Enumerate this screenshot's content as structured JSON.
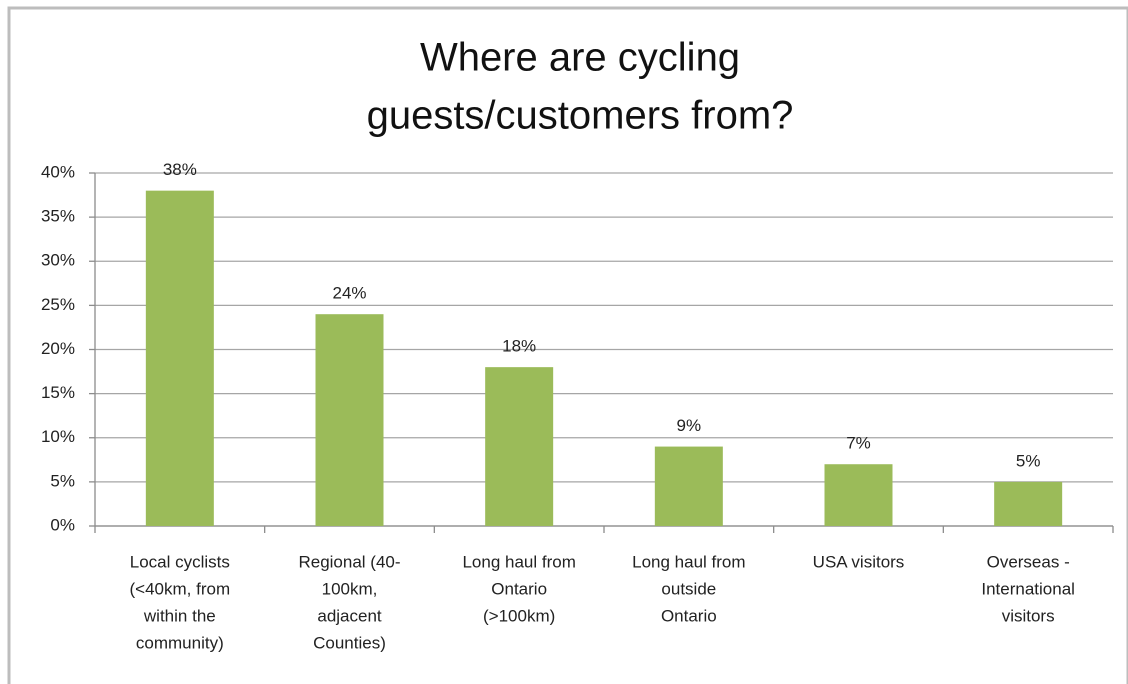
{
  "chart_data": {
    "type": "bar",
    "title": [
      "Where are cycling",
      "guests/customers from?"
    ],
    "categories": [
      [
        "Local cyclists",
        "(<40km, from",
        "within the",
        "community)"
      ],
      [
        "Regional (40-",
        "100km,",
        "adjacent",
        "Counties)"
      ],
      [
        "Long haul from",
        "Ontario",
        "(>100km)"
      ],
      [
        "Long haul from",
        "outside",
        "Ontario"
      ],
      [
        "USA visitors"
      ],
      [
        "Overseas -",
        "International",
        "visitors"
      ]
    ],
    "values": [
      38,
      24,
      18,
      9,
      7,
      5
    ],
    "value_labels": [
      "38%",
      "24%",
      "18%",
      "9%",
      "7%",
      "5%"
    ],
    "color": "#9bbb59",
    "ylim": [
      0,
      40
    ],
    "yticks": [
      {
        "value": 0,
        "label": "0%"
      },
      {
        "value": 5,
        "label": "5%"
      },
      {
        "value": 10,
        "label": "10%"
      },
      {
        "value": 15,
        "label": "15%"
      },
      {
        "value": 20,
        "label": "20%"
      },
      {
        "value": 25,
        "label": "25%"
      },
      {
        "value": 30,
        "label": "30%"
      },
      {
        "value": 35,
        "label": "35%"
      },
      {
        "value": 40,
        "label": "40%"
      }
    ],
    "grid": true
  }
}
